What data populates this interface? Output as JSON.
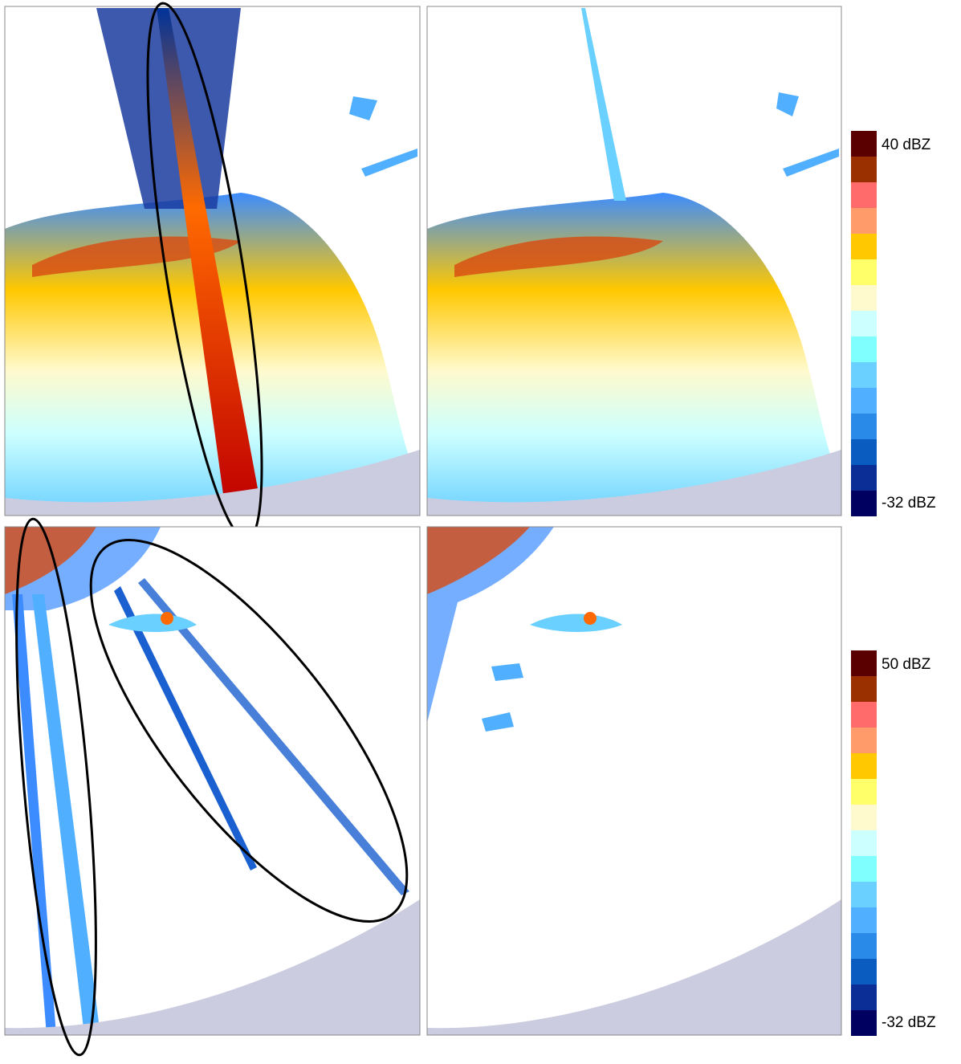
{
  "colorbars": [
    {
      "top_label": "40 dBZ",
      "bottom_label": "-32 dBZ"
    },
    {
      "top_label": "50 dBZ",
      "bottom_label": "-32 dBZ"
    }
  ]
}
